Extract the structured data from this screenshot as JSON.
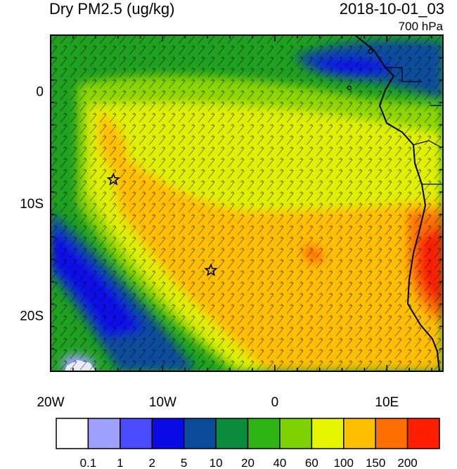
{
  "header": {
    "title": "Dry PM2.5 (ug/kg)",
    "valid_time": "2018-10-01_03",
    "level": "700 hPa"
  },
  "map": {
    "lon_range": [
      -20,
      15
    ],
    "lat_range": [
      -25,
      5
    ],
    "lon_ticks": [
      {
        "value": -20,
        "label": "20W"
      },
      {
        "value": -10,
        "label": "10W"
      },
      {
        "value": 0,
        "label": "0"
      },
      {
        "value": 10,
        "label": "10E"
      }
    ],
    "lat_ticks": [
      {
        "value": 0,
        "label": "0"
      },
      {
        "value": -10,
        "label": "10S"
      },
      {
        "value": -20,
        "label": "20S"
      }
    ],
    "markers": [
      {
        "name": "star-site-1",
        "lon": -14.4,
        "lat": -7.9
      },
      {
        "name": "star-site-2",
        "lon": -5.7,
        "lat": -16.0
      }
    ]
  },
  "colorbar": {
    "colors": [
      "#ffffff",
      "#a0a0ff",
      "#4b4bff",
      "#0a0ae6",
      "#0a4b9b",
      "#0a8c3c",
      "#2db414",
      "#7dd200",
      "#e6f500",
      "#ffbe00",
      "#ff6e00",
      "#ff1e00"
    ],
    "labels": [
      "0.1",
      "1",
      "2",
      "5",
      "10",
      "20",
      "40",
      "60",
      "100",
      "150",
      "200"
    ]
  }
}
